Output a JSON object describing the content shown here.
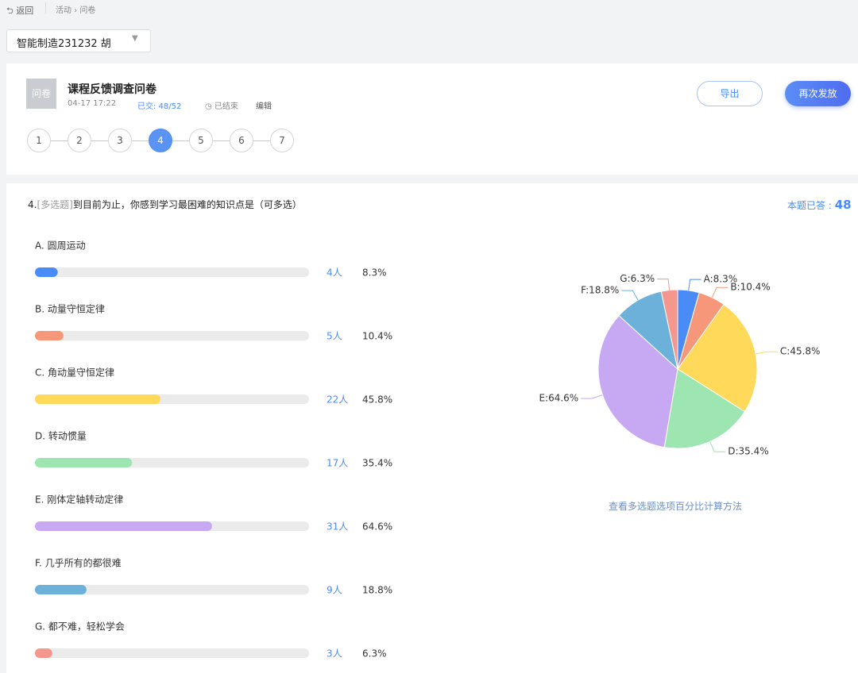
{
  "nav": {
    "back": "返回",
    "breadcrumb": [
      "活动",
      "问卷"
    ]
  },
  "class_select": "智能制造231232 胡",
  "survey": {
    "icon": "问卷",
    "title": "课程反馈调查问卷",
    "date": "04-17 17:22",
    "submitted": "已交: 48/52",
    "status": "已结束",
    "edit": "编辑",
    "export": "导出",
    "resend": "再次发放",
    "steps": [
      1,
      2,
      3,
      4,
      5,
      6,
      7
    ],
    "active_step": 4
  },
  "question": {
    "number": "4.",
    "tag": "[多选题]",
    "text": "到目前为止，你感到学习最困难的知识点是（可多选）",
    "answered_label": "本题已答 :",
    "answered": 48,
    "link": "查看多选题选项百分比计算方法"
  },
  "chart_data": [
    {
      "type": "bar",
      "orientation": "horizontal",
      "categories": [
        "A. 圆周运动",
        "B. 动量守恒定律",
        "C. 角动量守恒定律",
        "D. 转动惯量",
        "E. 刚体定轴转动定律",
        "F. 几乎所有的都很难",
        "G. 都不难，轻松学会"
      ],
      "values": [
        8.3,
        10.4,
        45.8,
        35.4,
        64.6,
        18.8,
        6.3
      ],
      "value_labels": [
        "8.3%",
        "10.4%",
        "45.8%",
        "35.4%",
        "64.6%",
        "18.8%",
        "6.3%"
      ],
      "count_labels": [
        "4人",
        "5人",
        "22人",
        "17人",
        "31人",
        "9人",
        "3人"
      ],
      "colors": [
        "#4a8cf7",
        "#f7977a",
        "#ffd95a",
        "#9de5b1",
        "#c6a9f2",
        "#6bb1d9",
        "#f5968f"
      ],
      "xlim": [
        0,
        100
      ]
    },
    {
      "type": "pie",
      "values": [
        8.3,
        10.4,
        45.8,
        35.4,
        64.6,
        18.8,
        6.3
      ],
      "value_labels": [
        "A:8.3%",
        "B:10.4%",
        "C:45.8%",
        "D:35.4%",
        "E:64.6%",
        "F:18.8%",
        "G:6.3%"
      ],
      "colors": [
        "#4a8cf7",
        "#f7977a",
        "#ffd95a",
        "#9de5b1",
        "#c6a9f2",
        "#6bb1d9",
        "#f5968f"
      ]
    }
  ]
}
